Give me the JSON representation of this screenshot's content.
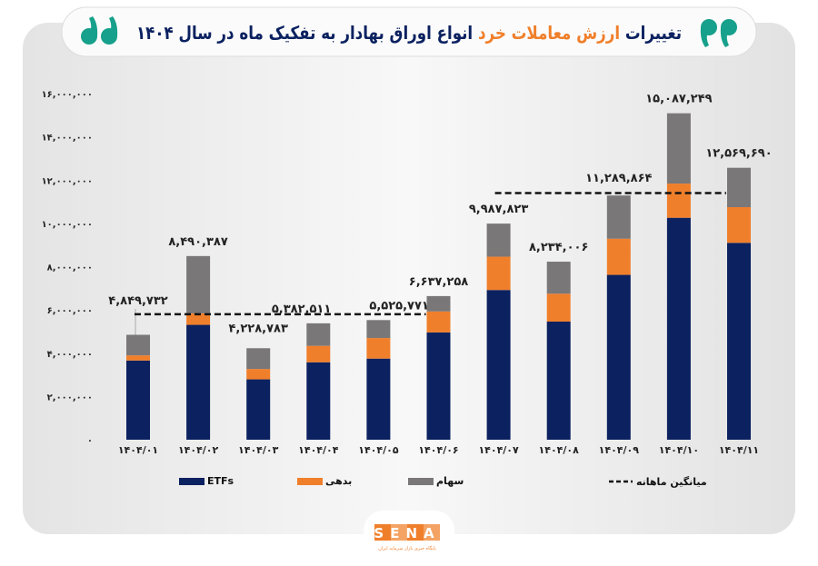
{
  "title": {
    "part1": "تغییرات ",
    "part2": "ارزش معاملات خرد",
    "part3": " انواع اوراق بهادار به تفکیک ماه در سال ۱۴۰۴"
  },
  "colors": {
    "etf": "#0b2160",
    "debt": "#f07f2b",
    "stock": "#7a7778",
    "title_navy": "#0b2160",
    "title_accent": "#f07f2b",
    "quote": "#17a08b"
  },
  "logo": {
    "text": "SENA",
    "subtitle": "پایگاه خبری بازار سرمایه ایران"
  },
  "chart_data": {
    "type": "bar",
    "stacked": true,
    "categories": [
      "۱۴۰۴/۰۱",
      "۱۴۰۴/۰۲",
      "۱۴۰۴/۰۳",
      "۱۴۰۴/۰۴",
      "۱۴۰۴/۰۵",
      "۱۴۰۴/۰۶",
      "۱۴۰۴/۰۷",
      "۱۴۰۴/۰۸",
      "۱۴۰۴/۰۹",
      "۱۴۰۴/۱۰",
      "۱۴۰۴/۱۱"
    ],
    "series": [
      {
        "name": "ETFs",
        "color": "#0b2160",
        "values": [
          3660000,
          5310000,
          2790000,
          3580000,
          3750000,
          4960000,
          6920000,
          5460000,
          7620000,
          10260000,
          9100000
        ]
      },
      {
        "name": "بدهی",
        "color": "#f07f2b",
        "values": [
          240000,
          530000,
          480000,
          760000,
          950000,
          970000,
          1540000,
          1290000,
          1670000,
          1580000,
          1650000
        ]
      },
      {
        "name": "سهام",
        "color": "#7a7778",
        "values": [
          950000,
          2650000,
          960000,
          1040000,
          830000,
          710000,
          1530000,
          1480000,
          2000000,
          3250000,
          1820000
        ]
      }
    ],
    "totals": [
      4849732,
      8490387,
      4228783,
      5382511,
      5525771,
      6637258,
      9987823,
      8234006,
      11289864,
      15087249,
      12569690
    ],
    "total_labels": [
      "۴,۸۴۹,۷۳۲",
      "۸,۴۹۰,۳۸۷",
      "۴,۲۲۸,۷۸۳",
      "۵,۳۸۲,۵۱۱",
      "۵,۵۲۵,۷۷۱",
      "۶,۶۳۷,۲۵۸",
      "۹,۹۸۷,۸۲۳",
      "۸,۲۳۴,۰۰۶",
      "۱۱,۲۸۹,۸۶۴",
      "۱۵,۰۸۷,۲۴۹",
      "۱۲,۵۶۹,۶۹۰"
    ],
    "monthly_average": {
      "name": "میانگین ماهانه",
      "segments": [
        {
          "from": 0,
          "to": 5,
          "value": 5800000
        },
        {
          "from": 6,
          "to": 10,
          "value": 11400000
        }
      ]
    },
    "ylim": [
      0,
      16000000
    ],
    "yticks": [
      0,
      2000000,
      4000000,
      6000000,
      8000000,
      10000000,
      12000000,
      14000000,
      16000000
    ],
    "ytick_labels": [
      "۰",
      "۲,۰۰۰,۰۰۰",
      "۴,۰۰۰,۰۰۰",
      "۶,۰۰۰,۰۰۰",
      "۸,۰۰۰,۰۰۰",
      "۱۰,۰۰۰,۰۰۰",
      "۱۲,۰۰۰,۰۰۰",
      "۱۴,۰۰۰,۰۰۰",
      "۱۶,۰۰۰,۰۰۰"
    ],
    "grid": false,
    "legend_position": "bottom"
  }
}
